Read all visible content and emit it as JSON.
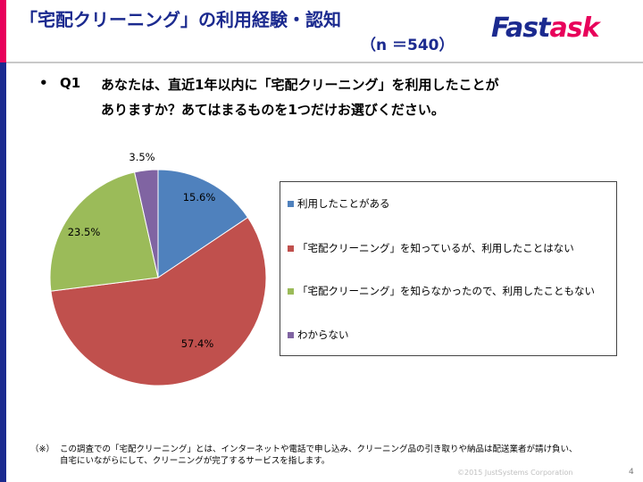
{
  "header": {
    "title": "「宅配クリーニング」の利用経験・認知",
    "sample_size": "（n ＝540）",
    "logo_part1": "Fast",
    "logo_part2": "ask"
  },
  "question": {
    "bullet": "•",
    "label": "Q1",
    "line1": "あなたは、直近1年以内に「宅配クリーニング」を利用したことが",
    "line2": "ありますか？あてはまるものを1つだけお選びください。"
  },
  "chart_data": {
    "type": "pie",
    "series": [
      {
        "name": "利用したことがある",
        "value": 15.6,
        "label": "15.6%",
        "color": "#4f81bd"
      },
      {
        "name": "「宅配クリーニング」を知っているが、利用したことはない",
        "value": 57.4,
        "label": "57.4%",
        "color": "#c0504d"
      },
      {
        "name": "「宅配クリーニング」を知らなかったので、利用したこともない",
        "value": 23.5,
        "label": "23.5%",
        "color": "#9bbb59"
      },
      {
        "name": "わからない",
        "value": 3.5,
        "label": "3.5%",
        "color": "#8064a2"
      }
    ],
    "start_angle": "12 o'clock",
    "direction": "clockwise",
    "legend_position": "right"
  },
  "footnote": {
    "mark": "（※）",
    "line1": "この調査での「宅配クリーニング」とは、インターネットや電話で申し込み、クリーニング品の引き取りや納品は配送業者が請け負い、",
    "line2": "自宅にいながらにして、クリーニングが完了するサービスを指します。"
  },
  "copyright": "©2015 JustSystems Corporation",
  "page_number": "4"
}
